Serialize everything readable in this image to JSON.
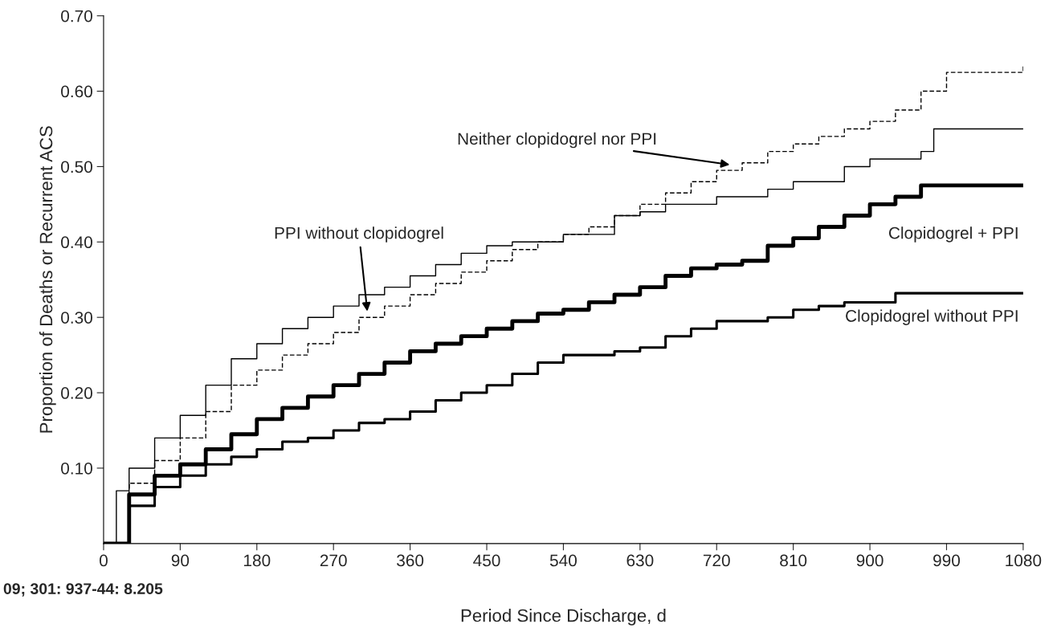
{
  "chart_data": {
    "type": "step",
    "xlabel": "Period Since Discharge, d",
    "ylabel": "Proportion of Deaths or Recurrent ACS",
    "xlim": [
      0,
      1080
    ],
    "ylim": [
      0,
      0.7
    ],
    "xticks": [
      0,
      90,
      180,
      270,
      360,
      450,
      540,
      630,
      720,
      810,
      900,
      990,
      1080
    ],
    "yticks": [
      {
        "value": 0.1,
        "label": "0.10"
      },
      {
        "value": 0.2,
        "label": "0.20"
      },
      {
        "value": 0.3,
        "label": "0.30"
      },
      {
        "value": 0.4,
        "label": "0.40"
      },
      {
        "value": 0.5,
        "label": "0.50"
      },
      {
        "value": 0.6,
        "label": "0.60"
      },
      {
        "value": 0.7,
        "label": "0.70"
      }
    ],
    "grid": false,
    "legend": false,
    "marker": "none",
    "annotations": [
      "09; 301: 937-44: 8.205"
    ],
    "series": [
      {
        "name": "Neither clopidogrel nor PPI",
        "color": "#000000",
        "line_style": "dashed",
        "x": [
          0,
          30,
          60,
          90,
          120,
          150,
          180,
          210,
          240,
          270,
          300,
          330,
          360,
          390,
          420,
          450,
          480,
          510,
          540,
          570,
          600,
          630,
          660,
          690,
          720,
          750,
          780,
          810,
          840,
          870,
          900,
          930,
          960,
          990,
          1080
        ],
        "values": [
          0,
          0.08,
          0.11,
          0.14,
          0.175,
          0.21,
          0.23,
          0.25,
          0.265,
          0.28,
          0.3,
          0.315,
          0.33,
          0.345,
          0.36,
          0.375,
          0.39,
          0.4,
          0.41,
          0.42,
          0.435,
          0.45,
          0.465,
          0.48,
          0.495,
          0.505,
          0.52,
          0.53,
          0.54,
          0.55,
          0.56,
          0.575,
          0.6,
          0.625,
          0.633
        ]
      },
      {
        "name": "PPI without clopidogrel",
        "color": "#000000",
        "line_style": "solid",
        "x": [
          0,
          15,
          30,
          60,
          90,
          120,
          150,
          180,
          210,
          240,
          270,
          300,
          330,
          360,
          390,
          420,
          450,
          480,
          540,
          600,
          630,
          660,
          720,
          780,
          810,
          870,
          900,
          960,
          975,
          1080
        ],
        "values": [
          0,
          0.07,
          0.1,
          0.14,
          0.17,
          0.21,
          0.245,
          0.265,
          0.285,
          0.3,
          0.315,
          0.33,
          0.34,
          0.355,
          0.37,
          0.385,
          0.395,
          0.4,
          0.41,
          0.435,
          0.44,
          0.45,
          0.46,
          0.47,
          0.48,
          0.5,
          0.51,
          0.52,
          0.55,
          0.55
        ]
      },
      {
        "name": "Clopidogrel + PPI",
        "color": "#000000",
        "line_style": "solid",
        "x": [
          0,
          30,
          60,
          90,
          120,
          150,
          180,
          210,
          240,
          270,
          300,
          330,
          360,
          390,
          420,
          450,
          480,
          510,
          540,
          570,
          600,
          630,
          660,
          690,
          720,
          750,
          780,
          810,
          840,
          870,
          900,
          930,
          960,
          1080
        ],
        "values": [
          0,
          0.065,
          0.09,
          0.105,
          0.125,
          0.145,
          0.165,
          0.18,
          0.195,
          0.21,
          0.225,
          0.24,
          0.255,
          0.265,
          0.275,
          0.285,
          0.295,
          0.305,
          0.31,
          0.32,
          0.33,
          0.34,
          0.355,
          0.365,
          0.37,
          0.375,
          0.395,
          0.405,
          0.42,
          0.435,
          0.45,
          0.46,
          0.475,
          0.475
        ]
      },
      {
        "name": "Clopidogrel without PPI",
        "color": "#000000",
        "line_style": "solid",
        "x": [
          0,
          30,
          60,
          90,
          120,
          150,
          180,
          210,
          240,
          270,
          300,
          330,
          360,
          390,
          420,
          450,
          480,
          510,
          540,
          600,
          630,
          660,
          690,
          720,
          780,
          810,
          840,
          870,
          930,
          1080
        ],
        "values": [
          0,
          0.05,
          0.075,
          0.09,
          0.105,
          0.115,
          0.125,
          0.135,
          0.14,
          0.15,
          0.16,
          0.165,
          0.175,
          0.19,
          0.2,
          0.21,
          0.225,
          0.24,
          0.25,
          0.255,
          0.26,
          0.275,
          0.285,
          0.295,
          0.3,
          0.31,
          0.315,
          0.32,
          0.332,
          0.332
        ]
      }
    ]
  }
}
